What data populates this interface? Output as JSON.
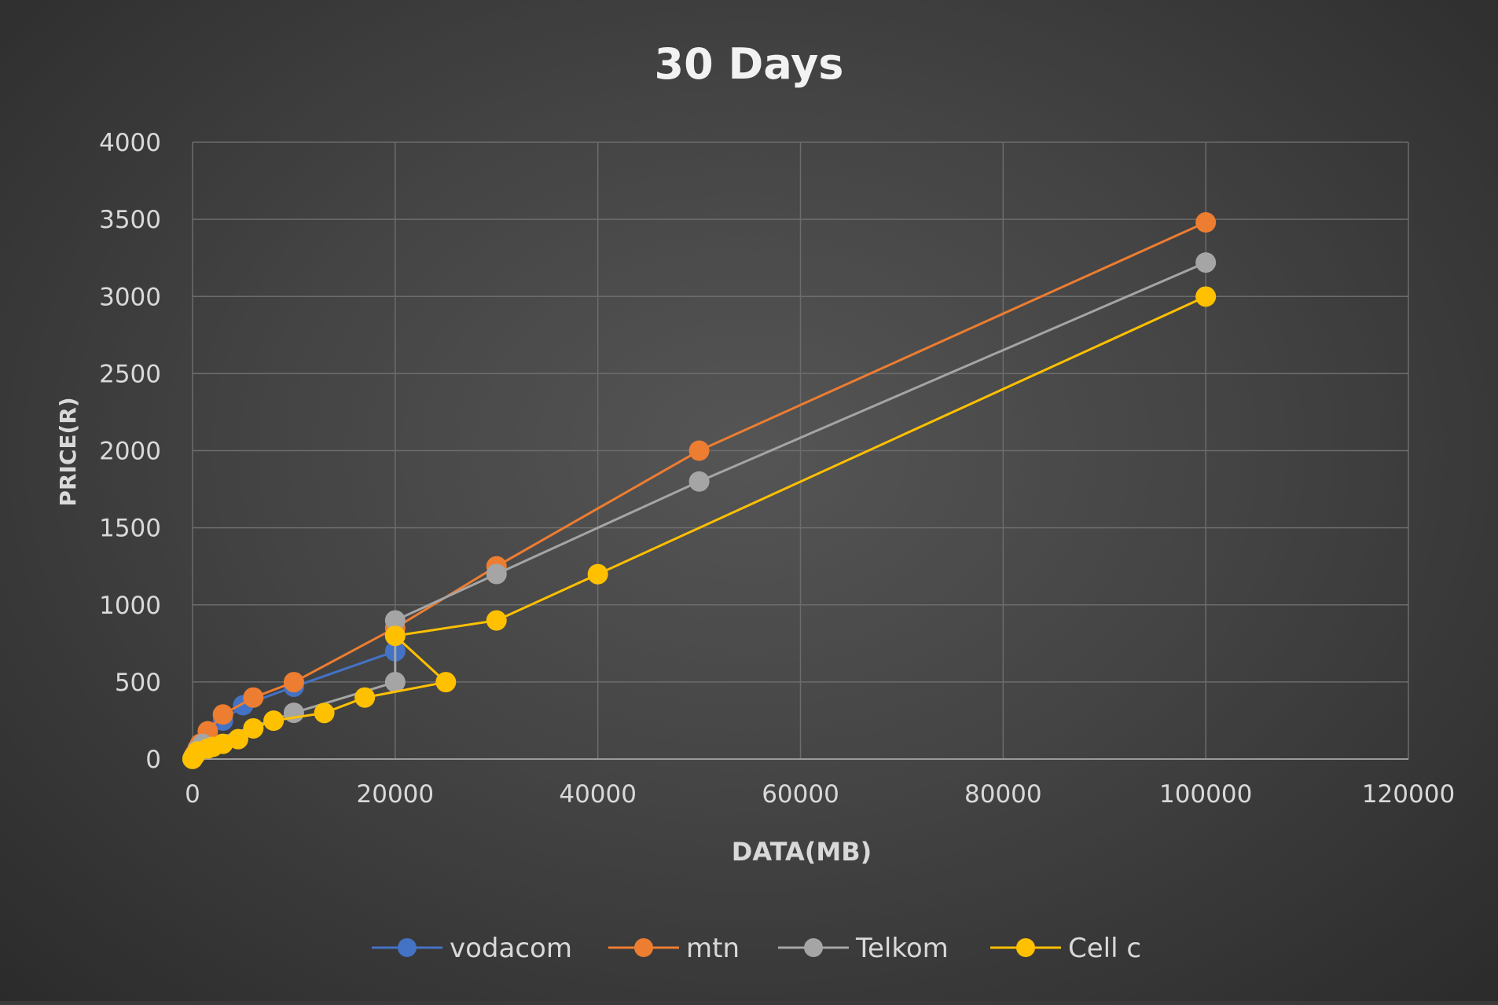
{
  "chart_data": {
    "type": "scatter",
    "title": "30 Days",
    "xlabel": "DATA(MB)",
    "ylabel": "PRICE(R)",
    "xlim": [
      0,
      120000
    ],
    "ylim": [
      0,
      4000
    ],
    "x_ticks": [
      0,
      20000,
      40000,
      60000,
      80000,
      100000,
      120000
    ],
    "y_ticks": [
      0,
      500,
      1000,
      1500,
      2000,
      2500,
      3000,
      3500,
      4000
    ],
    "grid": true,
    "legend": "bottom",
    "series": [
      {
        "name": "vodacom",
        "color": "#4472c4",
        "points": [
          [
            0,
            2
          ],
          [
            50,
            10
          ],
          [
            100,
            17
          ],
          [
            250,
            35
          ],
          [
            500,
            59
          ],
          [
            1000,
            99
          ],
          [
            1500,
            149
          ],
          [
            3000,
            249
          ],
          [
            5000,
            349
          ],
          [
            10000,
            469
          ],
          [
            20000,
            699
          ]
        ]
      },
      {
        "name": "mtn",
        "color": "#ed7d31",
        "points": [
          [
            0,
            2
          ],
          [
            100,
            17
          ],
          [
            250,
            35
          ],
          [
            500,
            69
          ],
          [
            750,
            99
          ],
          [
            1500,
            180
          ],
          [
            3000,
            289
          ],
          [
            6000,
            399
          ],
          [
            10000,
            499
          ],
          [
            20000,
            850
          ],
          [
            30000,
            1250
          ],
          [
            50000,
            2000
          ],
          [
            100000,
            3480
          ]
        ]
      },
      {
        "name": "Telkom",
        "color": "#a5a5a5",
        "points": [
          [
            0,
            2
          ],
          [
            100,
            15
          ],
          [
            500,
            59
          ],
          [
            1000,
            99
          ],
          [
            10000,
            300
          ],
          [
            20000,
            499
          ],
          [
            20000,
            899
          ],
          [
            30000,
            1200
          ],
          [
            50000,
            1800
          ],
          [
            100000,
            3220
          ]
        ]
      },
      {
        "name": "Cell c",
        "color": "#ffc000",
        "points": [
          [
            0,
            1
          ],
          [
            100,
            12
          ],
          [
            250,
            25
          ],
          [
            500,
            49
          ],
          [
            1500,
            69
          ],
          [
            2000,
            79
          ],
          [
            3000,
            99
          ],
          [
            4500,
            129
          ],
          [
            6000,
            199
          ],
          [
            8000,
            249
          ],
          [
            13000,
            299
          ],
          [
            17000,
            399
          ],
          [
            25000,
            499
          ],
          [
            20000,
            799
          ],
          [
            30000,
            899
          ],
          [
            40000,
            1199
          ],
          [
            100000,
            2999
          ]
        ]
      }
    ]
  }
}
